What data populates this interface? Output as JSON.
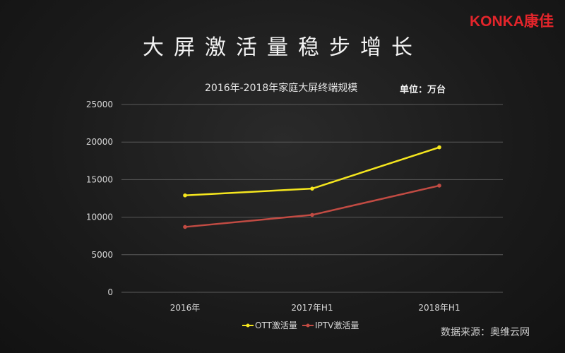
{
  "slide": {
    "title": "大屏激活量稳步增长",
    "logo_text": "KONKA康佳",
    "source": "数据来源：奥维云网"
  },
  "colors": {
    "background": "#1c1c1c",
    "brand": "#e4252b",
    "ott": "#f5e61e",
    "iptv": "#c24b43",
    "grid": "#5a5a5a"
  },
  "chart_data": {
    "type": "line",
    "title": "2016年-2018年家庭大屏终端规模",
    "unit": "单位：万台",
    "categories": [
      "2016年",
      "2017年H1",
      "2018年H1"
    ],
    "ylim": [
      0,
      25000
    ],
    "yticks": [
      0,
      5000,
      10000,
      15000,
      20000,
      25000
    ],
    "grid": true,
    "legend_position": "bottom",
    "series": [
      {
        "name": "OTT激活量",
        "values": [
          12900,
          13800,
          19300
        ],
        "color": "#f5e61e"
      },
      {
        "name": "IPTV激活量",
        "values": [
          8700,
          10300,
          14200
        ],
        "color": "#c24b43"
      }
    ]
  }
}
